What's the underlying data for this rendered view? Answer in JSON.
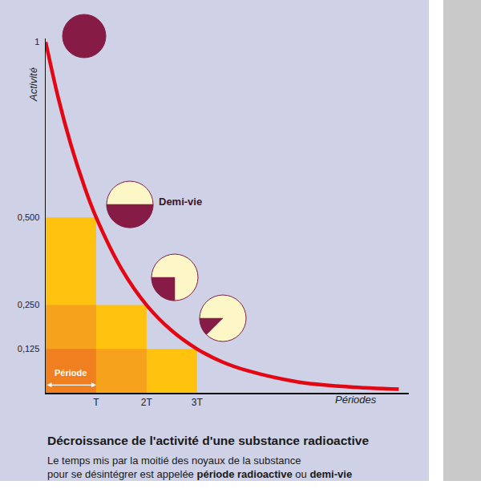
{
  "chart_data": {
    "type": "line",
    "title": "Décroissance de l'activité d'une substance radioactive",
    "subtitle": [
      "Le temps mis par la moitié des noyaux de la substance",
      "pour se désintégrer est appelée période radioactive ou demi-vie"
    ],
    "emphasis": [
      "période radioactive",
      "demi-vie"
    ],
    "x_label": "Périodes",
    "y_label": "Activité",
    "xlim": [
      0,
      7.2
    ],
    "ylim": [
      0,
      1.01
    ],
    "xticks": [
      {
        "value": 1,
        "label": "T"
      },
      {
        "value": 2,
        "label": "2T"
      },
      {
        "value": 3,
        "label": "3T"
      }
    ],
    "yticks": [
      1,
      {
        "value": 0.5,
        "label": "0,500"
      },
      {
        "value": 0.25,
        "label": "0,250"
      },
      {
        "value": 0.125,
        "label": "0,125"
      }
    ],
    "grid": false,
    "series": [
      {
        "type": "bar",
        "x": [
          0.5,
          1.5,
          2.5
        ],
        "values": [
          0.5,
          0.25,
          0.125
        ],
        "colors": [
          "#fec20f",
          "#f7a21c",
          "#f0801f"
        ]
      },
      {
        "type": "line",
        "color": "#e30613",
        "line_style": "solid",
        "x": [
          0,
          0.25,
          0.5,
          0.75,
          1,
          1.5,
          2,
          2.5,
          3,
          3.5,
          4,
          5,
          6,
          7
        ],
        "values": [
          1,
          0.84,
          0.707,
          0.595,
          0.5,
          0.354,
          0.25,
          0.177,
          0.125,
          0.088,
          0.063,
          0.031,
          0.017,
          0.01
        ]
      }
    ],
    "annotations": [
      "Demi-vie",
      "Période"
    ]
  }
}
